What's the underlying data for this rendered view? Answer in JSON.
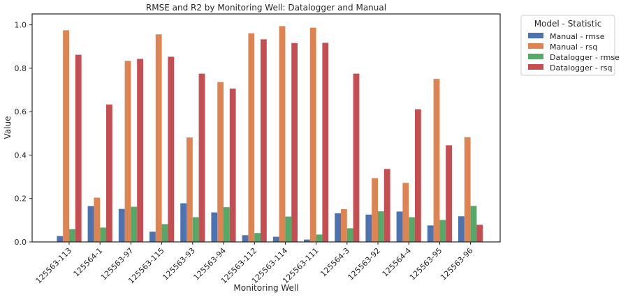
{
  "chart_data": {
    "type": "bar",
    "title": "RMSE and R2 by Monitoring Well: Datalogger and Manual",
    "xlabel": "Monitoring Well",
    "ylabel": "Value",
    "ylim": [
      0,
      1.05
    ],
    "yticks": [
      "0.0",
      "0.2",
      "0.4",
      "0.6",
      "0.8",
      "1.0"
    ],
    "grid": false,
    "legend_title": "Model - Statistic",
    "legend_placement": "outside-top-right",
    "categories": [
      "125563-113",
      "125564-1",
      "125563-97",
      "125563-115",
      "125563-93",
      "125563-94",
      "125563-112",
      "125563-114",
      "125563-111",
      "125564-3",
      "125563-92",
      "125564-4",
      "125563-95",
      "125563-96"
    ],
    "series": [
      {
        "name": "Manual - rmse",
        "color": "#4c72b0",
        "values": [
          0.027,
          0.165,
          0.152,
          0.047,
          0.178,
          0.136,
          0.031,
          0.024,
          0.011,
          0.132,
          0.126,
          0.14,
          0.076,
          0.118
        ]
      },
      {
        "name": "Manual - rsq",
        "color": "#dd8452",
        "values": [
          0.975,
          0.204,
          0.834,
          0.956,
          0.481,
          0.736,
          0.961,
          0.994,
          0.987,
          0.151,
          0.294,
          0.272,
          0.751,
          0.482
        ]
      },
      {
        "name": "Datalogger - rmse",
        "color": "#55a868",
        "values": [
          0.059,
          0.066,
          0.162,
          0.082,
          0.114,
          0.16,
          0.041,
          0.117,
          0.034,
          0.063,
          0.141,
          0.114,
          0.101,
          0.166
        ]
      },
      {
        "name": "Datalogger - rsq",
        "color": "#c44e52",
        "values": [
          0.862,
          0.633,
          0.843,
          0.853,
          0.775,
          0.706,
          0.933,
          0.916,
          0.917,
          0.775,
          0.336,
          0.611,
          0.445,
          0.079
        ]
      }
    ]
  }
}
